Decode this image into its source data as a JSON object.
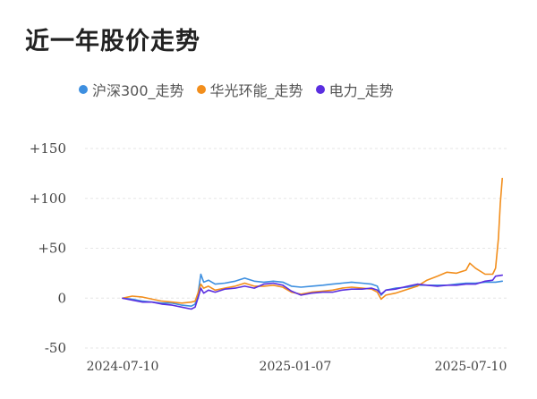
{
  "page": {
    "title": "近一年股价走势"
  },
  "chart_data": {
    "type": "line",
    "ylim": [
      -50,
      150
    ],
    "y_ticks": [
      150,
      100,
      50,
      0,
      -50
    ],
    "y_tick_labels": [
      "+150",
      "+100",
      "+50",
      "0",
      "-50"
    ],
    "x_ticks": [
      "2024-07-10",
      "2025-01-07",
      "2025-07-10"
    ],
    "grid": true,
    "legend_position": "top",
    "series": [
      {
        "name": "沪深300_走势",
        "color": "#3d8fe0",
        "points": [
          [
            "2024-07-10",
            0
          ],
          [
            "2024-07-20",
            -1
          ],
          [
            "2024-07-31",
            -3
          ],
          [
            "2024-08-10",
            -4
          ],
          [
            "2024-08-20",
            -5
          ],
          [
            "2024-08-31",
            -5
          ],
          [
            "2024-09-10",
            -7
          ],
          [
            "2024-09-20",
            -8
          ],
          [
            "2024-09-24",
            -6
          ],
          [
            "2024-09-27",
            4
          ],
          [
            "2024-09-30",
            24
          ],
          [
            "2024-10-03",
            16
          ],
          [
            "2024-10-08",
            18
          ],
          [
            "2024-10-15",
            14
          ],
          [
            "2024-10-25",
            15
          ],
          [
            "2024-11-05",
            17
          ],
          [
            "2024-11-15",
            20
          ],
          [
            "2024-11-25",
            17
          ],
          [
            "2024-12-05",
            16
          ],
          [
            "2024-12-15",
            17
          ],
          [
            "2024-12-25",
            16
          ],
          [
            "2025-01-03",
            12
          ],
          [
            "2025-01-13",
            11
          ],
          [
            "2025-01-24",
            12
          ],
          [
            "2025-02-05",
            13
          ],
          [
            "2025-02-15",
            14
          ],
          [
            "2025-02-25",
            15
          ],
          [
            "2025-03-07",
            16
          ],
          [
            "2025-03-18",
            15
          ],
          [
            "2025-03-28",
            14
          ],
          [
            "2025-04-03",
            12
          ],
          [
            "2025-04-07",
            3
          ],
          [
            "2025-04-12",
            8
          ],
          [
            "2025-04-22",
            10
          ],
          [
            "2025-05-05",
            11
          ],
          [
            "2025-05-15",
            13
          ],
          [
            "2025-05-25",
            13
          ],
          [
            "2025-06-05",
            13
          ],
          [
            "2025-06-15",
            13
          ],
          [
            "2025-06-25",
            14
          ],
          [
            "2025-07-05",
            15
          ],
          [
            "2025-07-15",
            15
          ],
          [
            "2025-07-25",
            16
          ],
          [
            "2025-08-05",
            16
          ],
          [
            "2025-08-12",
            17
          ]
        ]
      },
      {
        "name": "华光环能_走势",
        "color": "#f28e1c",
        "points": [
          [
            "2024-07-10",
            0
          ],
          [
            "2024-07-20",
            2
          ],
          [
            "2024-07-31",
            1
          ],
          [
            "2024-08-10",
            -1
          ],
          [
            "2024-08-20",
            -3
          ],
          [
            "2024-08-31",
            -4
          ],
          [
            "2024-09-10",
            -5
          ],
          [
            "2024-09-20",
            -4
          ],
          [
            "2024-09-24",
            -3
          ],
          [
            "2024-09-27",
            5
          ],
          [
            "2024-09-30",
            14
          ],
          [
            "2024-10-03",
            10
          ],
          [
            "2024-10-08",
            12
          ],
          [
            "2024-10-15",
            8
          ],
          [
            "2024-10-25",
            10
          ],
          [
            "2024-11-05",
            12
          ],
          [
            "2024-11-15",
            15
          ],
          [
            "2024-11-25",
            12
          ],
          [
            "2024-12-05",
            12
          ],
          [
            "2024-12-15",
            13
          ],
          [
            "2024-12-25",
            11
          ],
          [
            "2025-01-03",
            6
          ],
          [
            "2025-01-13",
            4
          ],
          [
            "2025-01-24",
            6
          ],
          [
            "2025-02-05",
            7
          ],
          [
            "2025-02-15",
            8
          ],
          [
            "2025-02-25",
            10
          ],
          [
            "2025-03-07",
            11
          ],
          [
            "2025-03-18",
            10
          ],
          [
            "2025-03-28",
            9
          ],
          [
            "2025-04-03",
            6
          ],
          [
            "2025-04-07",
            -1
          ],
          [
            "2025-04-12",
            3
          ],
          [
            "2025-04-22",
            5
          ],
          [
            "2025-05-05",
            9
          ],
          [
            "2025-05-15",
            12
          ],
          [
            "2025-05-25",
            18
          ],
          [
            "2025-06-05",
            22
          ],
          [
            "2025-06-15",
            26
          ],
          [
            "2025-06-25",
            25
          ],
          [
            "2025-07-05",
            28
          ],
          [
            "2025-07-09",
            35
          ],
          [
            "2025-07-15",
            30
          ],
          [
            "2025-07-25",
            24
          ],
          [
            "2025-08-02",
            24
          ],
          [
            "2025-08-05",
            30
          ],
          [
            "2025-08-08",
            60
          ],
          [
            "2025-08-10",
            95
          ],
          [
            "2025-08-12",
            120
          ]
        ]
      },
      {
        "name": "电力_走势",
        "color": "#5a2ee0",
        "points": [
          [
            "2024-07-10",
            0
          ],
          [
            "2024-07-20",
            -2
          ],
          [
            "2024-07-31",
            -4
          ],
          [
            "2024-08-10",
            -4
          ],
          [
            "2024-08-20",
            -6
          ],
          [
            "2024-08-31",
            -7
          ],
          [
            "2024-09-10",
            -9
          ],
          [
            "2024-09-20",
            -11
          ],
          [
            "2024-09-24",
            -9
          ],
          [
            "2024-09-27",
            0
          ],
          [
            "2024-09-30",
            10
          ],
          [
            "2024-10-03",
            5
          ],
          [
            "2024-10-08",
            8
          ],
          [
            "2024-10-15",
            6
          ],
          [
            "2024-10-25",
            9
          ],
          [
            "2024-11-05",
            10
          ],
          [
            "2024-11-15",
            12
          ],
          [
            "2024-11-25",
            10
          ],
          [
            "2024-12-05",
            14
          ],
          [
            "2024-12-15",
            15
          ],
          [
            "2024-12-25",
            13
          ],
          [
            "2025-01-03",
            7
          ],
          [
            "2025-01-13",
            3
          ],
          [
            "2025-01-24",
            5
          ],
          [
            "2025-02-05",
            6
          ],
          [
            "2025-02-15",
            6
          ],
          [
            "2025-02-25",
            8
          ],
          [
            "2025-03-07",
            9
          ],
          [
            "2025-03-18",
            9
          ],
          [
            "2025-03-28",
            10
          ],
          [
            "2025-04-03",
            8
          ],
          [
            "2025-04-07",
            4
          ],
          [
            "2025-04-12",
            8
          ],
          [
            "2025-04-22",
            9
          ],
          [
            "2025-05-05",
            12
          ],
          [
            "2025-05-15",
            14
          ],
          [
            "2025-05-25",
            13
          ],
          [
            "2025-06-05",
            12
          ],
          [
            "2025-06-15",
            13
          ],
          [
            "2025-06-25",
            13
          ],
          [
            "2025-07-05",
            14
          ],
          [
            "2025-07-15",
            14
          ],
          [
            "2025-07-25",
            17
          ],
          [
            "2025-08-02",
            18
          ],
          [
            "2025-08-05",
            22
          ],
          [
            "2025-08-12",
            23
          ]
        ]
      }
    ]
  }
}
